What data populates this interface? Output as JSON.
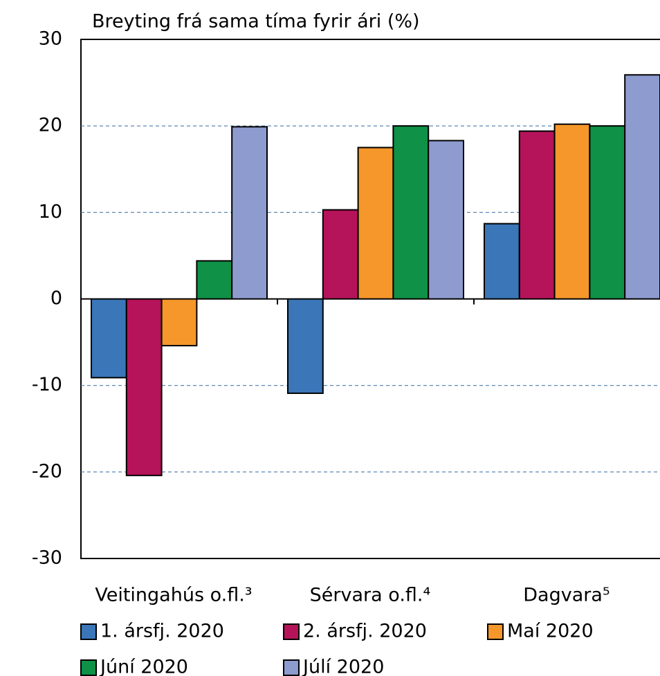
{
  "chart_data": {
    "type": "bar",
    "title": "Breyting frá sama tíma fyrir ári (%)",
    "categories": [
      "Veitingahús o.fl.³",
      "Sérvara o.fl.⁴",
      "Dagvara⁵"
    ],
    "series": [
      {
        "name": "1. ársfj. 2020",
        "color": "#3a76b8",
        "values": [
          -9.1,
          -10.9,
          8.7
        ]
      },
      {
        "name": "2. ársfj. 2020",
        "color": "#b5135a",
        "values": [
          -20.4,
          10.3,
          19.4
        ]
      },
      {
        "name": "Maí 2020",
        "color": "#f5972a",
        "values": [
          -5.4,
          17.5,
          20.2
        ]
      },
      {
        "name": "Júní 2020",
        "color": "#0f9147",
        "values": [
          4.4,
          20.0,
          20.0
        ]
      },
      {
        "name": "Júlí 2020",
        "color": "#8e9bcf",
        "values": [
          19.9,
          18.3,
          25.9
        ]
      }
    ],
    "ylim": [
      -30,
      30
    ],
    "yticks": [
      -30,
      -20,
      -10,
      0,
      10,
      20,
      30
    ],
    "grid": true
  }
}
